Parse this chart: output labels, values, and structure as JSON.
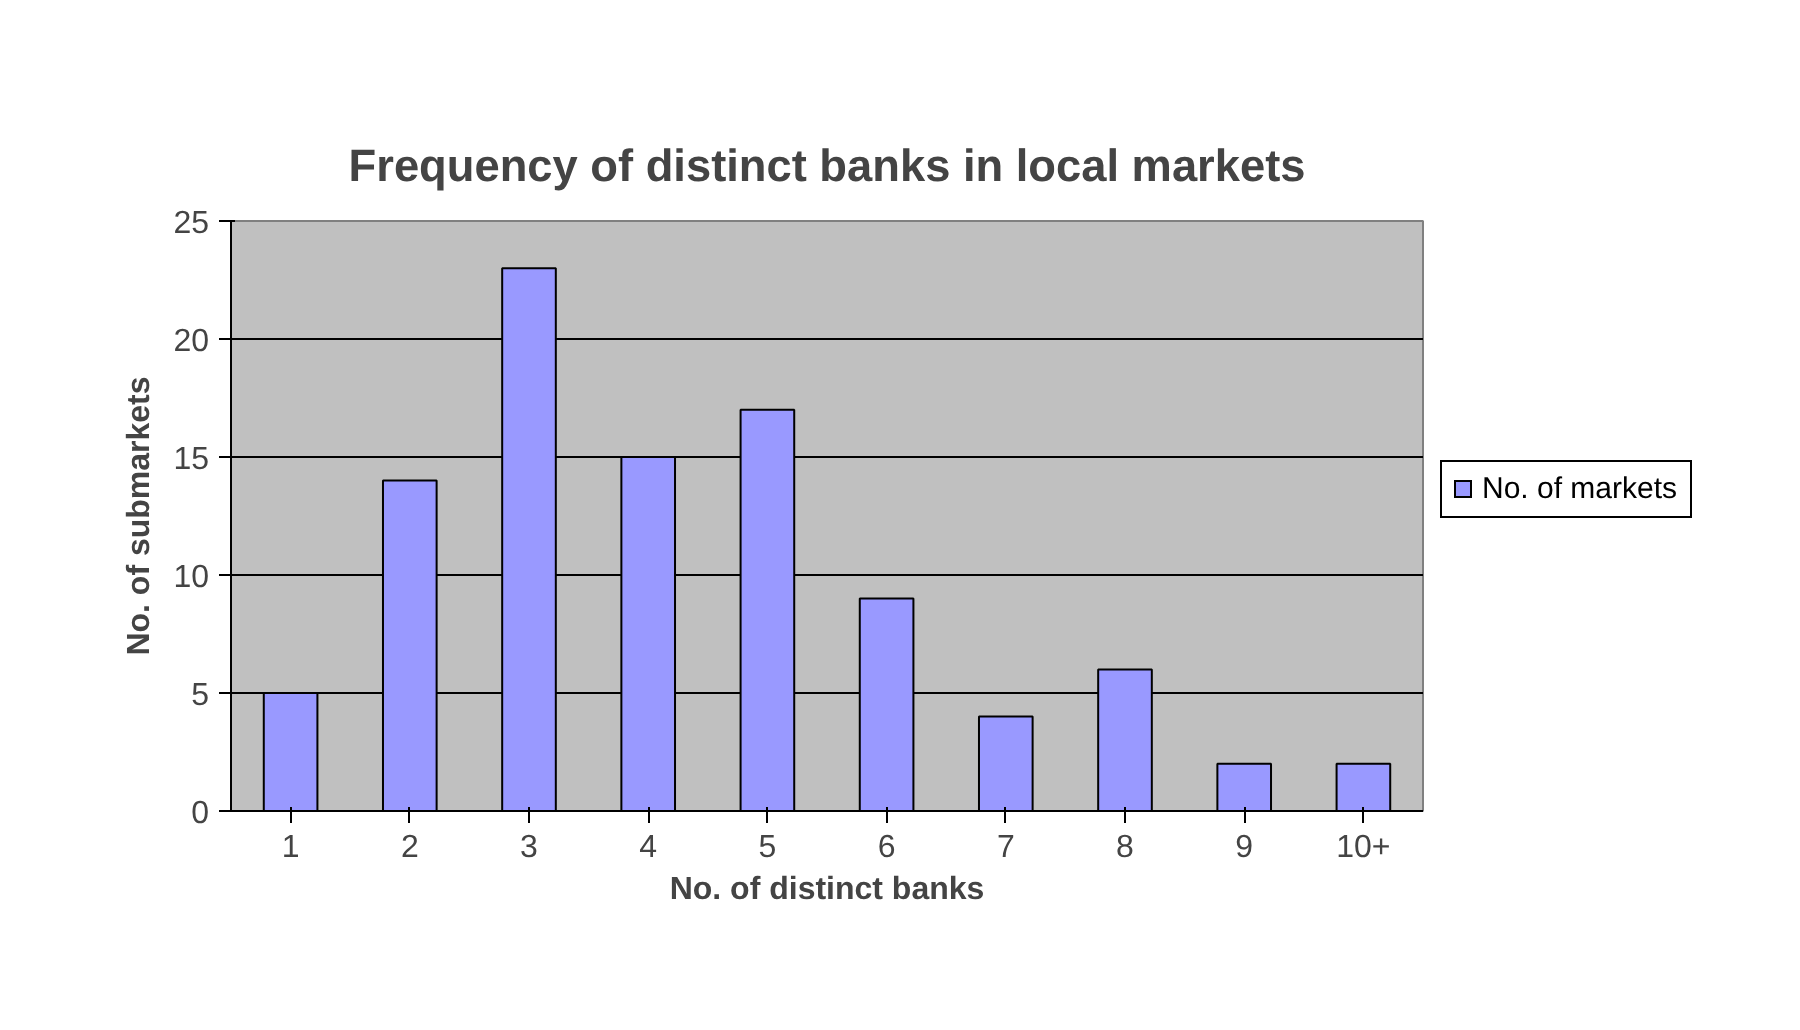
{
  "chart_data": {
    "type": "bar",
    "title": "Frequency of distinct banks in local markets",
    "xlabel": "No. of distinct banks",
    "ylabel": "No. of submarkets",
    "categories": [
      "1",
      "2",
      "3",
      "4",
      "5",
      "6",
      "7",
      "8",
      "9",
      "10+"
    ],
    "series": [
      {
        "name": "No. of markets",
        "color": "#9999ff",
        "values": [
          5,
          14,
          23,
          15,
          17,
          9,
          4,
          6,
          2,
          2
        ]
      }
    ],
    "ylim": [
      0,
      25
    ],
    "yticks": [
      0,
      5,
      10,
      15,
      20,
      25
    ],
    "grid": "y",
    "legend": "right"
  }
}
